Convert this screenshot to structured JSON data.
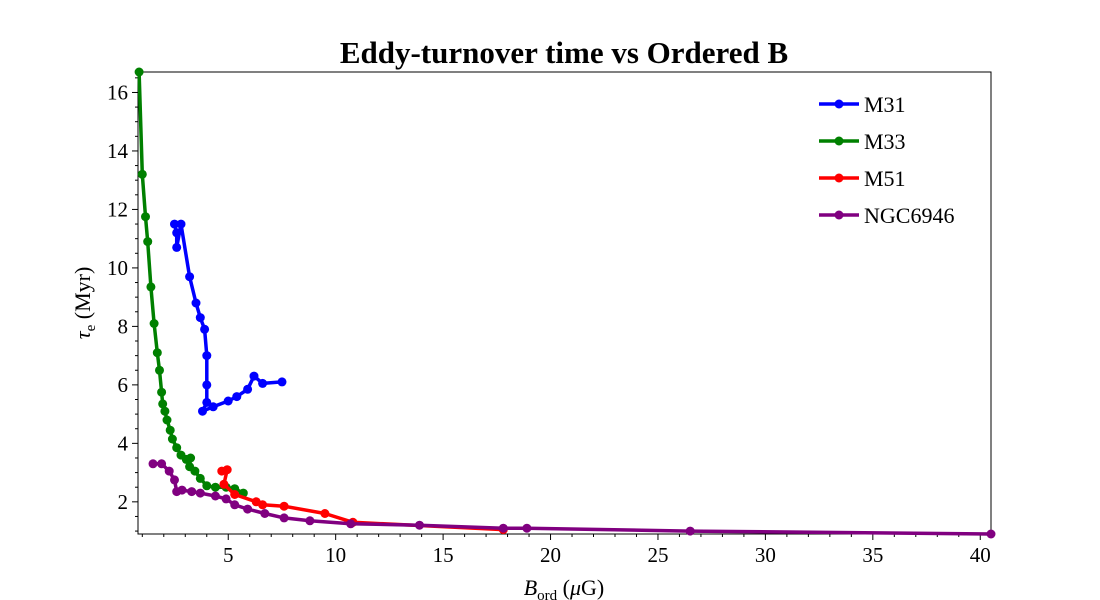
{
  "chart_data": {
    "type": "line",
    "title": "Eddy-turnover time vs Ordered B",
    "xlabel": {
      "main": "B",
      "sub": "ord",
      "rest_open": " (",
      "greek": "μ",
      "rest_close": "G)"
    },
    "ylabel": {
      "main": "τ",
      "sub": "e",
      "rest": " (Myr)"
    },
    "xlim": [
      0.8,
      40.5
    ],
    "ylim": [
      0.9,
      16.7
    ],
    "xticks": [
      5,
      10,
      15,
      20,
      25,
      30,
      35,
      40
    ],
    "yticks": [
      2,
      4,
      6,
      8,
      10,
      12,
      14,
      16
    ],
    "grid": false,
    "legend_position": "top-right",
    "series": [
      {
        "name": "M31",
        "color": "#0000ff",
        "points": [
          [
            2.5,
            11.5
          ],
          [
            2.6,
            11.2
          ],
          [
            2.6,
            10.7
          ],
          [
            2.8,
            11.5
          ],
          [
            3.2,
            9.7
          ],
          [
            3.5,
            8.8
          ],
          [
            3.7,
            8.3
          ],
          [
            3.9,
            7.9
          ],
          [
            4.0,
            7.0
          ],
          [
            4.0,
            6.0
          ],
          [
            4.0,
            5.4
          ],
          [
            3.8,
            5.1
          ],
          [
            4.3,
            5.25
          ],
          [
            5.0,
            5.45
          ],
          [
            5.4,
            5.6
          ],
          [
            5.9,
            5.85
          ],
          [
            6.2,
            6.3
          ],
          [
            6.6,
            6.05
          ],
          [
            7.5,
            6.1
          ]
        ]
      },
      {
        "name": "M33",
        "color": "#008000",
        "points": [
          [
            0.85,
            16.7
          ],
          [
            1.0,
            13.2
          ],
          [
            1.15,
            11.75
          ],
          [
            1.25,
            10.9
          ],
          [
            1.4,
            9.35
          ],
          [
            1.55,
            8.1
          ],
          [
            1.7,
            7.1
          ],
          [
            1.8,
            6.5
          ],
          [
            1.9,
            5.75
          ],
          [
            1.95,
            5.35
          ],
          [
            2.05,
            5.1
          ],
          [
            2.15,
            4.8
          ],
          [
            2.3,
            4.45
          ],
          [
            2.4,
            4.15
          ],
          [
            2.6,
            3.85
          ],
          [
            2.8,
            3.6
          ],
          [
            3.05,
            3.45
          ],
          [
            3.25,
            3.5
          ],
          [
            3.2,
            3.2
          ],
          [
            3.45,
            3.05
          ],
          [
            3.7,
            2.8
          ],
          [
            4.0,
            2.55
          ],
          [
            4.4,
            2.5
          ],
          [
            4.9,
            2.5
          ],
          [
            5.3,
            2.45
          ],
          [
            5.7,
            2.3
          ]
        ]
      },
      {
        "name": "M51",
        "color": "#ff0000",
        "points": [
          [
            4.7,
            3.05
          ],
          [
            4.95,
            3.1
          ],
          [
            4.8,
            2.6
          ],
          [
            5.3,
            2.25
          ],
          [
            6.3,
            2.0
          ],
          [
            6.6,
            1.9
          ],
          [
            7.6,
            1.85
          ],
          [
            9.5,
            1.6
          ],
          [
            10.8,
            1.3
          ],
          [
            17.8,
            1.05
          ]
        ]
      },
      {
        "name": "NGC6946",
        "color": "#800080",
        "points": [
          [
            1.5,
            3.3
          ],
          [
            1.9,
            3.3
          ],
          [
            2.25,
            3.05
          ],
          [
            2.5,
            2.75
          ],
          [
            2.6,
            2.35
          ],
          [
            2.85,
            2.4
          ],
          [
            3.3,
            2.35
          ],
          [
            3.7,
            2.3
          ],
          [
            4.4,
            2.2
          ],
          [
            4.9,
            2.1
          ],
          [
            5.3,
            1.9
          ],
          [
            5.9,
            1.75
          ],
          [
            6.7,
            1.6
          ],
          [
            7.6,
            1.45
          ],
          [
            8.8,
            1.35
          ],
          [
            10.7,
            1.25
          ],
          [
            13.9,
            1.2
          ],
          [
            17.8,
            1.1
          ],
          [
            18.9,
            1.1
          ],
          [
            26.5,
            1.0
          ],
          [
            40.5,
            0.9
          ]
        ]
      }
    ]
  }
}
